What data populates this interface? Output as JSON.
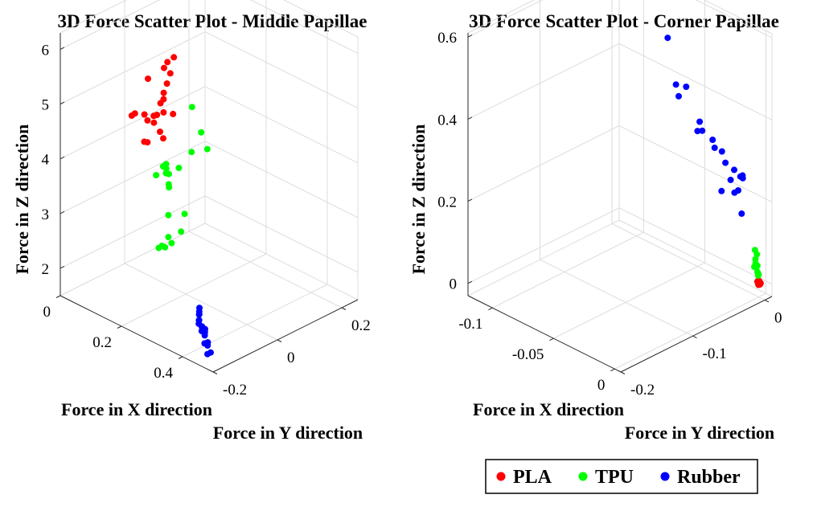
{
  "legend": [
    {
      "name": "PLA",
      "color": "#ff0000"
    },
    {
      "name": "TPU",
      "color": "#00ff00"
    },
    {
      "name": "Rubber",
      "color": "#0000ff"
    }
  ],
  "chart_data": [
    {
      "type": "scatter",
      "dimensions": 3,
      "title": "3D Force Scatter Plot - Middle Papillae",
      "xlabel": "Force in X direction",
      "ylabel": "Force in Y direction",
      "zlabel": "Force in Z direction",
      "xlim": [
        0,
        0.5
      ],
      "ylim": [
        -0.2,
        0.25
      ],
      "zlim": [
        1.5,
        6.3
      ],
      "xticks": [
        0,
        0.2,
        0.4
      ],
      "xtick_labels": [
        "0",
        "0.2",
        "0.4"
      ],
      "yticks": [
        -0.2,
        0,
        0.2
      ],
      "ytick_labels": [
        "-0.2",
        "0",
        "0.2"
      ],
      "zticks": [
        2,
        3,
        4,
        5,
        6
      ],
      "ztick_labels": [
        "2",
        "3",
        "4",
        "5",
        "6"
      ],
      "grid": true,
      "series": [
        {
          "name": "PLA",
          "color": "#ff0000",
          "points": [
            [
              0.16,
              -0.13,
              5.03
            ],
            [
              0.16,
              -0.12,
              5.04
            ],
            [
              0.17,
              -0.1,
              4.99
            ],
            [
              0.18,
              -0.1,
              4.91
            ],
            [
              0.19,
              -0.09,
              4.99
            ],
            [
              0.19,
              -0.08,
              4.98
            ],
            [
              0.18,
              -0.08,
              4.81
            ],
            [
              0.2,
              -0.08,
              4.7
            ],
            [
              0.18,
              -0.1,
              4.51
            ],
            [
              0.18,
              -0.11,
              4.55
            ],
            [
              0.2,
              -0.07,
              4.55
            ],
            [
              0.15,
              -0.07,
              5.5
            ],
            [
              0.17,
              -0.05,
              5.05
            ],
            [
              0.18,
              -0.05,
              5.15
            ],
            [
              0.17,
              -0.04,
              5.21
            ],
            [
              0.18,
              -0.05,
              4.91
            ],
            [
              0.19,
              -0.03,
              4.85
            ],
            [
              0.17,
              -0.03,
              5.35
            ],
            [
              0.15,
              -0.02,
              5.55
            ],
            [
              0.16,
              -0.01,
              5.45
            ],
            [
              0.14,
              0.0,
              5.57
            ],
            [
              0.14,
              0.02,
              5.6
            ]
          ]
        },
        {
          "name": "TPU",
          "color": "#00ff00",
          "points": [
            [
              0.08,
              0.03,
              1.92
            ],
            [
              0.08,
              0.04,
              1.93
            ],
            [
              0.09,
              0.04,
              1.93
            ],
            [
              0.08,
              0.06,
              2.03
            ],
            [
              0.08,
              0.07,
              1.89
            ],
            [
              0.08,
              0.06,
              2.43
            ],
            [
              0.09,
              0.09,
              2.07
            ],
            [
              0.04,
              0.06,
              3.05
            ],
            [
              0.05,
              0.09,
              3.01
            ],
            [
              0.06,
              0.08,
              2.88
            ],
            [
              0.04,
              0.1,
              2.71
            ],
            [
              0.02,
              0.11,
              3.05
            ],
            [
              0.03,
              0.1,
              2.94
            ],
            [
              0.01,
              0.11,
              2.98
            ],
            [
              0.01,
              0.12,
              2.91
            ],
            [
              0.07,
              0.12,
              2.25
            ],
            [
              0.03,
              0.14,
              2.92
            ],
            [
              0.04,
              0.17,
              3.15
            ],
            [
              0.06,
              0.2,
              3.17
            ],
            [
              0.04,
              0.2,
              3.42
            ],
            [
              0.01,
              0.2,
              3.8
            ]
          ]
        },
        {
          "name": "Rubber",
          "color": "#0000ff",
          "points": [
            [
              0.45,
              -0.17,
              1.6
            ],
            [
              0.45,
              -0.16,
              1.6
            ],
            [
              0.44,
              -0.16,
              1.7
            ],
            [
              0.43,
              -0.16,
              1.71
            ],
            [
              0.43,
              -0.15,
              1.7
            ],
            [
              0.42,
              -0.15,
              1.8
            ],
            [
              0.41,
              -0.15,
              1.85
            ],
            [
              0.41,
              -0.14,
              1.8
            ],
            [
              0.4,
              -0.14,
              1.87
            ],
            [
              0.39,
              -0.14,
              1.9
            ],
            [
              0.4,
              -0.13,
              1.8
            ],
            [
              0.39,
              -0.13,
              1.82
            ],
            [
              0.38,
              -0.13,
              1.9
            ],
            [
              0.37,
              -0.12,
              1.95
            ],
            [
              0.37,
              -0.12,
              1.85
            ],
            [
              0.36,
              -0.11,
              1.9
            ],
            [
              0.36,
              -0.11,
              1.95
            ],
            [
              0.35,
              -0.1,
              1.96
            ]
          ]
        }
      ]
    },
    {
      "type": "scatter",
      "dimensions": 3,
      "title": "3D Force Scatter Plot - Corner Papillae",
      "xlabel": "Force in X direction",
      "ylabel": "Force in Y direction",
      "zlabel": "Force in Z direction",
      "xlim": [
        -0.12,
        0.005
      ],
      "ylim": [
        -0.2,
        0.01
      ],
      "zlim": [
        -0.03,
        0.61
      ],
      "xticks": [
        -0.1,
        -0.05,
        0
      ],
      "xtick_labels": [
        "-0.1",
        "-0.05",
        "0"
      ],
      "yticks": [
        -0.2,
        -0.1,
        0
      ],
      "ytick_labels": [
        "-0.2",
        "-0.1",
        "0"
      ],
      "zticks": [
        0,
        0.2,
        0.4,
        0.6
      ],
      "ztick_labels": [
        "0",
        "0.2",
        "0.4",
        "0.6"
      ],
      "grid": true,
      "series": [
        {
          "name": "PLA",
          "color": "#ff0000",
          "points": [
            [
              0.0,
              0.002,
              0.003
            ],
            [
              0.001,
              0.0,
              0.002
            ],
            [
              0.0,
              -0.001,
              0.005
            ],
            [
              -0.001,
              0.0,
              0.006
            ],
            [
              0.001,
              0.001,
              0.004
            ],
            [
              0.0,
              0.001,
              0.008
            ],
            [
              -0.001,
              0.001,
              0.007
            ],
            [
              0.001,
              -0.002,
              0.003
            ]
          ]
        },
        {
          "name": "TPU",
          "color": "#00ff00",
          "points": [
            [
              -0.002,
              0.0,
              0.04
            ],
            [
              -0.001,
              0.0,
              0.03
            ],
            [
              -0.002,
              -0.001,
              0.05
            ],
            [
              -0.001,
              0.001,
              0.02
            ],
            [
              -0.002,
              -0.001,
              0.06
            ],
            [
              0.0,
              0.0,
              0.025
            ],
            [
              -0.001,
              0.0,
              0.045
            ],
            [
              -0.002,
              0.001,
              0.07
            ],
            [
              -0.003,
              0.0,
              0.08
            ],
            [
              -0.002,
              0.0,
              0.04
            ],
            [
              -0.003,
              -0.001,
              0.04
            ]
          ]
        },
        {
          "name": "Rubber",
          "color": "#0000ff",
          "points": [
            [
              -0.095,
              0.002,
              0.56
            ],
            [
              -0.078,
              0.006,
              0.48
            ],
            [
              -0.07,
              0.004,
              0.38
            ],
            [
              -0.064,
              0.008,
              0.38
            ],
            [
              -0.066,
              0.001,
              0.36
            ],
            [
              -0.05,
              0.003,
              0.32
            ],
            [
              -0.05,
              0.0,
              0.3
            ],
            [
              -0.045,
              -0.002,
              0.31
            ],
            [
              -0.04,
              0.004,
              0.29
            ],
            [
              -0.036,
              0.0,
              0.28
            ],
            [
              -0.03,
              0.0,
              0.28
            ],
            [
              -0.026,
              -0.002,
              0.26
            ],
            [
              -0.02,
              0.0,
              0.25
            ],
            [
              -0.028,
              -0.004,
              0.19
            ],
            [
              -0.013,
              0.0,
              0.24
            ],
            [
              -0.012,
              -0.002,
              0.25
            ],
            [
              -0.015,
              -0.003,
              0.21
            ],
            [
              -0.018,
              -0.003,
              0.2
            ],
            [
              -0.012,
              -0.005,
              0.25
            ],
            [
              -0.008,
              -0.01,
              0.17
            ],
            [
              -0.02,
              -0.005,
              0.23
            ]
          ]
        }
      ]
    }
  ]
}
